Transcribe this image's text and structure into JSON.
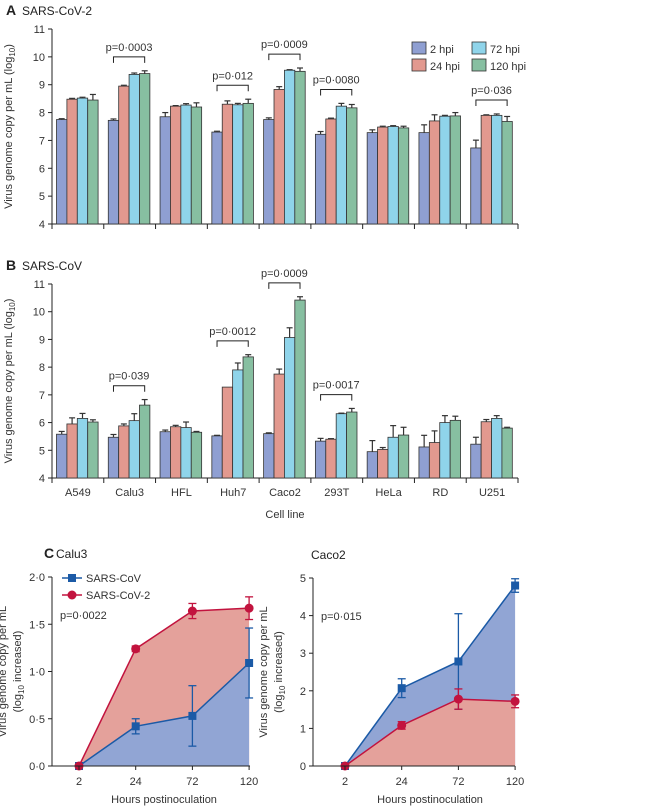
{
  "chart_data": [
    {
      "type": "bar",
      "panel": "A",
      "title": "SARS-CoV-2",
      "ylabel": {
        "text": "Virus genome copy per mL (log",
        "sub": "10",
        "end": ")"
      },
      "ylim": [
        4,
        11
      ],
      "yticks": [
        "4",
        "5",
        "6",
        "7",
        "8",
        "9",
        "10",
        "11"
      ],
      "categories": [
        "A549",
        "Calu3",
        "HFL",
        "Huh7",
        "Caco2",
        "293T",
        "HeLa",
        "RD",
        "U251"
      ],
      "show_xticklabels": false,
      "series": [
        {
          "name": "2 hpi",
          "color": "#8f9fd2",
          "values": [
            7.75,
            7.72,
            7.85,
            7.3,
            7.75,
            7.22,
            7.28,
            7.28,
            6.73
          ],
          "errors": [
            0.03,
            0.05,
            0.15,
            0.03,
            0.06,
            0.1,
            0.1,
            0.28,
            0.28
          ]
        },
        {
          "name": "24 hpi",
          "color": "#e2998f",
          "values": [
            8.48,
            8.95,
            8.23,
            8.3,
            8.83,
            7.77,
            7.48,
            7.7,
            7.9
          ],
          "errors": [
            0.03,
            0.03,
            0.02,
            0.12,
            0.1,
            0.03,
            0.03,
            0.22,
            0.02
          ]
        },
        {
          "name": "72 hpi",
          "color": "#8fd4ea",
          "values": [
            8.52,
            9.37,
            8.27,
            8.28,
            9.52,
            8.23,
            7.5,
            7.87,
            7.9
          ],
          "errors": [
            0.03,
            0.05,
            0.05,
            0.05,
            0.02,
            0.1,
            0.03,
            0.03,
            0.05
          ]
        },
        {
          "name": "120 hpi",
          "color": "#87bfa1",
          "values": [
            8.45,
            9.4,
            8.2,
            8.33,
            9.48,
            8.17,
            7.45,
            7.88,
            7.68
          ],
          "errors": [
            0.2,
            0.1,
            0.15,
            0.15,
            0.12,
            0.12,
            0.06,
            0.12,
            0.18
          ]
        }
      ],
      "annotations": [
        {
          "category": "Calu3",
          "label": "p=0·0003"
        },
        {
          "category": "Huh7",
          "label": "p=0·012"
        },
        {
          "category": "Caco2",
          "label": "p=0·0009"
        },
        {
          "category": "293T",
          "label": "p=0·0080"
        },
        {
          "category": "U251",
          "label": "p=0·036"
        }
      ],
      "legend": "top-right"
    },
    {
      "type": "bar",
      "panel": "B",
      "title": "SARS-CoV",
      "ylabel": {
        "text": "Virus genome copy per mL (log",
        "sub": "10",
        "end": ")"
      },
      "xlabel": "Cell line",
      "ylim": [
        4,
        11
      ],
      "yticks": [
        "4",
        "5",
        "6",
        "7",
        "8",
        "9",
        "10",
        "11"
      ],
      "categories": [
        "A549",
        "Calu3",
        "HFL",
        "Huh7",
        "Caco2",
        "293T",
        "HeLa",
        "RD",
        "U251"
      ],
      "show_xticklabels": true,
      "series": [
        {
          "name": "2 hpi",
          "color": "#8f9fd2",
          "values": [
            5.58,
            5.47,
            5.67,
            5.52,
            5.6,
            5.33,
            4.95,
            5.12,
            5.22
          ],
          "errors": [
            0.1,
            0.1,
            0.06,
            0.02,
            0.03,
            0.1,
            0.4,
            0.42,
            0.25
          ]
        },
        {
          "name": "24 hpi",
          "color": "#e2998f",
          "values": [
            5.95,
            5.88,
            5.85,
            7.28,
            7.75,
            5.4,
            5.03,
            5.28,
            6.03
          ],
          "errors": [
            0.22,
            0.07,
            0.05,
            0,
            0.18,
            0.02,
            0.07,
            0.42,
            0.08
          ]
        },
        {
          "name": "72 hpi",
          "color": "#8fd4ea",
          "values": [
            6.15,
            6.07,
            5.82,
            7.9,
            9.07,
            6.32,
            5.47,
            6.0,
            6.15
          ],
          "errors": [
            0.18,
            0.25,
            0.2,
            0.25,
            0.35,
            0.02,
            0.42,
            0.25,
            0.1
          ]
        },
        {
          "name": "120 hpi",
          "color": "#87bfa1",
          "values": [
            6.02,
            6.63,
            5.65,
            8.37,
            10.42,
            6.38,
            5.55,
            6.08,
            5.8
          ],
          "errors": [
            0.08,
            0.2,
            0.03,
            0.08,
            0.12,
            0.13,
            0.28,
            0.15,
            0.03
          ]
        }
      ],
      "annotations": [
        {
          "category": "Calu3",
          "label": "p=0·039"
        },
        {
          "category": "Huh7",
          "label": "p=0·0012"
        },
        {
          "category": "Caco2",
          "label": "p=0·0009"
        },
        {
          "category": "293T",
          "label": "p=0·0017"
        }
      ]
    },
    {
      "type": "area",
      "panel": "C",
      "title": "Calu3",
      "ylabel": [
        "Virus genome copy per mL",
        {
          "text": "(log",
          "sub": "10",
          "end": " increased)"
        }
      ],
      "xlabel": "Hours postinoculation",
      "x": [
        "2",
        "24",
        "72",
        "120"
      ],
      "ylim": [
        0,
        2
      ],
      "yticks": [
        "0·0",
        "0·5",
        "1·0",
        "1·5",
        "2·0"
      ],
      "annotation": "p=0·0022",
      "series": [
        {
          "name": "SARS-CoV",
          "color": "#1b5aa6",
          "fill": "#91a5d4",
          "marker": "square",
          "values": [
            0,
            0.42,
            0.53,
            1.09
          ],
          "errors": [
            0.02,
            0.08,
            0.32,
            0.37
          ]
        },
        {
          "name": "SARS-CoV-2",
          "color": "#c2133e",
          "fill": "#e4a19b",
          "marker": "circle",
          "values": [
            0,
            1.24,
            1.64,
            1.67
          ],
          "errors": [
            0,
            0.03,
            0.08,
            0.12
          ]
        }
      ],
      "legend": "top-left"
    },
    {
      "type": "area",
      "panel": "",
      "title": "Caco2",
      "ylabel": [
        "Virus genome copy per mL",
        {
          "text": "(log",
          "sub": "10",
          "end": " increased)"
        }
      ],
      "xlabel": "Hours postinoculation",
      "x": [
        "2",
        "24",
        "72",
        "120"
      ],
      "ylim": [
        0,
        5
      ],
      "yticks": [
        "0",
        "1",
        "2",
        "3",
        "4",
        "5"
      ],
      "annotation": "p=0·015",
      "series": [
        {
          "name": "SARS-CoV",
          "color": "#1b5aa6",
          "fill": "#91a5d4",
          "marker": "square",
          "values": [
            0,
            2.07,
            2.78,
            4.8
          ],
          "errors": [
            0,
            0.25,
            1.27,
            0.18
          ]
        },
        {
          "name": "SARS-CoV-2",
          "color": "#c2133e",
          "fill": "#e4a19b",
          "marker": "circle",
          "values": [
            0,
            1.08,
            1.78,
            1.72
          ],
          "errors": [
            0,
            0.1,
            0.27,
            0.17
          ]
        }
      ]
    }
  ]
}
